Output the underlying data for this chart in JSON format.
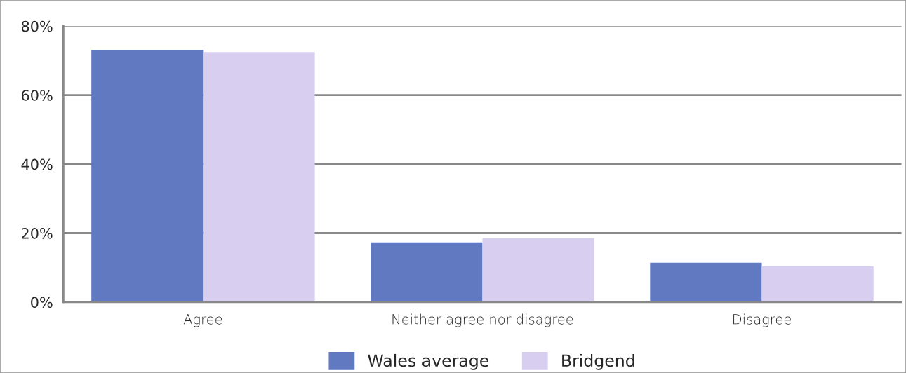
{
  "chart_data": {
    "type": "bar",
    "categories": [
      "Agree",
      "Neither agree nor disagree",
      "Disagree"
    ],
    "series": [
      {
        "name": "Wales average",
        "color": "#6079c1",
        "values": [
          73.1,
          17.3,
          11.4
        ]
      },
      {
        "name": "Bridgend",
        "color": "#d8cef0",
        "values": [
          72.5,
          18.5,
          10.4
        ]
      }
    ],
    "ylim": [
      0,
      80
    ],
    "yticks": [
      {
        "value": 0,
        "label": "0%"
      },
      {
        "value": 20,
        "label": "20%"
      },
      {
        "value": 40,
        "label": "40%"
      },
      {
        "value": 60,
        "label": "60%"
      },
      {
        "value": 80,
        "label": "80%"
      }
    ],
    "grid": "y",
    "legend": "bottom"
  }
}
